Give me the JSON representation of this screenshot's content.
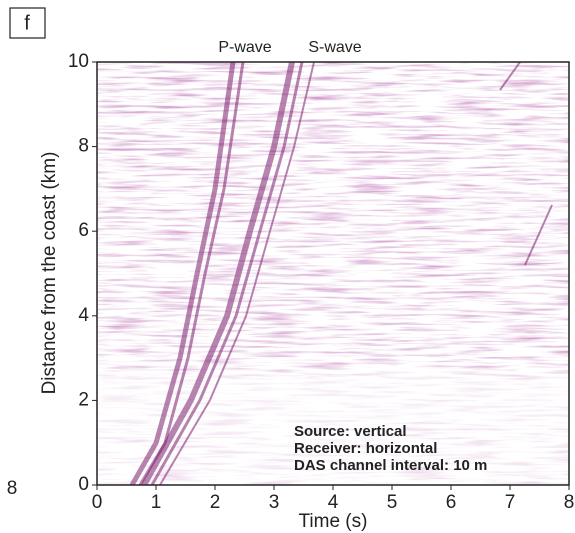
{
  "chart_data": {
    "type": "image",
    "panel_label": "f",
    "cropped_tick": "8",
    "wave_labels": [
      "P-wave",
      "S-wave"
    ],
    "x_label": "Time (s)",
    "y_label": "Distance from the coast (km)",
    "xlim": [
      0,
      8
    ],
    "xticks": [
      0,
      1,
      2,
      3,
      4,
      5,
      6,
      7,
      8
    ],
    "ylim": [
      0,
      10
    ],
    "yticks": [
      0,
      2,
      4,
      6,
      8,
      10
    ],
    "annotations": [
      "Source: vertical",
      "Receiver: horizontal",
      "DAS channel interval: 10 m"
    ],
    "color": "#7a1f6e"
  }
}
